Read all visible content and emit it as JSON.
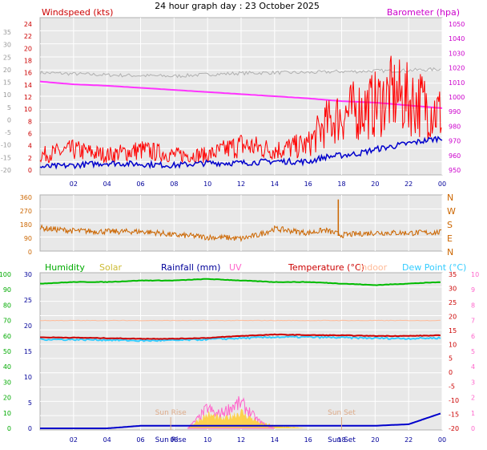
{
  "title": "24 hour graph day : 23 October 2025",
  "x_ticks": [
    "02",
    "04",
    "06",
    "08",
    "10",
    "12",
    "14",
    "16",
    "18",
    "20",
    "22",
    "00"
  ],
  "colors": {
    "background": "#ffffff",
    "plot_bg": "#e8e8e8",
    "grid": "#ffffff",
    "wind_gust": "#ff0000",
    "wind_avg": "#0000cc",
    "barometer": "#ff33ff",
    "gray_series": "#b0b0b0",
    "wind_dir": "#cc6600",
    "humidity": "#00bb00",
    "solar": "#ffcc33",
    "rainfall": "#0000cc",
    "uv": "#ff66cc",
    "temperature": "#cc0000",
    "indoor": "#ffbb99",
    "dew_point": "#33ccff",
    "text_blue": "#000099"
  },
  "chart_data": [
    {
      "type": "line",
      "title": "24 hour graph day : 23 October 2025",
      "left_label": "Windspeed (kts)",
      "right_label": "Barometer (hpa)",
      "left_ticks": [
        "24",
        "22",
        "20",
        "18",
        "16",
        "14",
        "12",
        "10",
        "8",
        "6",
        "4",
        "2",
        "0"
      ],
      "right_ticks": [
        "1050",
        "1040",
        "1030",
        "1020",
        "1010",
        "1000",
        "990",
        "980",
        "970",
        "960",
        "950"
      ],
      "far_left_ticks": [
        "35",
        "30",
        "25",
        "20",
        "15",
        "10",
        "5",
        "0",
        "-5",
        "-10",
        "-15",
        "-20"
      ],
      "ylim": [
        0,
        25
      ],
      "y2lim": [
        945,
        1050
      ],
      "x": [
        0,
        2,
        4,
        6,
        8,
        10,
        12,
        14,
        16,
        17,
        18,
        19,
        20,
        21,
        22,
        23,
        24
      ],
      "series": [
        {
          "key": "gust",
          "values": [
            3,
            4,
            3,
            4,
            3,
            3,
            5,
            4,
            5,
            9,
            11,
            12,
            13,
            15,
            14,
            13,
            11
          ]
        },
        {
          "key": "avg",
          "values": [
            0.5,
            0.8,
            1.2,
            1.0,
            0.8,
            1.2,
            1.2,
            1.5,
            1.4,
            2.2,
            2.5,
            2.8,
            3.5,
            4.0,
            4.5,
            5.0,
            5.5
          ]
        },
        {
          "key": "baro",
          "values": [
            1008,
            1006,
            1005,
            1003.5,
            1002,
            1000.5,
            999,
            997.5,
            996,
            995,
            994,
            993.5,
            993,
            992,
            991,
            990,
            989
          ]
        },
        {
          "key": "gray",
          "values": [
            16.5,
            16.3,
            16.1,
            16.0,
            15.9,
            16.2,
            16.4,
            16.5,
            16.5,
            16.6,
            16.7,
            16.7,
            16.8,
            16.8,
            16.9,
            17.0,
            17.1
          ]
        }
      ]
    },
    {
      "type": "scatter",
      "ticks": [
        "360",
        "270",
        "180",
        "90",
        "0"
      ],
      "compass": [
        "N",
        "W",
        "S",
        "E",
        "N"
      ],
      "ylim": [
        0,
        360
      ],
      "x": [
        0,
        2,
        4,
        6,
        7,
        8,
        9,
        10,
        11,
        12,
        13,
        14,
        16,
        17,
        18,
        20,
        22,
        24
      ],
      "values": [
        145,
        125,
        120,
        120,
        112,
        95,
        90,
        80,
        78,
        70,
        95,
        140,
        110,
        130,
        95,
        112,
        110,
        115
      ]
    },
    {
      "type": "line",
      "labels": {
        "humidity": "Humidity",
        "solar": "Solar",
        "rainfall": "Rainfall (mm)",
        "uv": "UV",
        "temperature": "Temperature (°C)",
        "indoor": "Indoor",
        "dew_point": "Dew Point (°C)"
      },
      "annotations": [
        "Sun Rise",
        "Sun Set",
        "Sun Rise",
        "Sun Set"
      ],
      "humidity_ticks": [
        "100",
        "90",
        "80",
        "70",
        "60",
        "50",
        "40",
        "30",
        "20",
        "10",
        "0"
      ],
      "solar_ticks": [
        "30",
        "25",
        "20",
        "15",
        "10",
        "5",
        "0"
      ],
      "temp_ticks": [
        "35",
        "30",
        "25",
        "20",
        "15",
        "10",
        "5",
        "0",
        "-5",
        "-10",
        "-15",
        "-20"
      ],
      "uv_ticks": [
        "10",
        "9",
        "8",
        "7",
        "6",
        "5",
        "4",
        "3",
        "2",
        "1",
        "0"
      ],
      "x": [
        0,
        2,
        4,
        6,
        8,
        10,
        12,
        14,
        16,
        18,
        20,
        22,
        24
      ],
      "series": [
        {
          "key": "humidity",
          "values": [
            94,
            95,
            95,
            96,
            96,
            97,
            96,
            95,
            95,
            94,
            93,
            94,
            95
          ]
        },
        {
          "key": "temperature",
          "values": [
            12.5,
            12.4,
            12.2,
            12.0,
            12.0,
            12.3,
            13.0,
            13.5,
            13.3,
            13.2,
            13.0,
            13.0,
            13.2
          ]
        },
        {
          "key": "dew_point",
          "values": [
            11.8,
            11.7,
            11.6,
            11.3,
            11.4,
            11.8,
            12.2,
            12.6,
            12.6,
            12.4,
            12.2,
            12.1,
            12.3
          ]
        },
        {
          "key": "indoor",
          "values": [
            18.5,
            18.5,
            18.5,
            18.5,
            18.5,
            18.5,
            18.5,
            18.5,
            18.5,
            18.5,
            18.5,
            18.5,
            18.5
          ]
        },
        {
          "key": "rainfall",
          "values": [
            0,
            0,
            0,
            0.5,
            0.5,
            0.5,
            0.5,
            0.5,
            0.5,
            0.5,
            0.5,
            0.8,
            3
          ]
        }
      ],
      "solar_area": {
        "x": [
          8.8,
          9.5,
          10,
          10.5,
          11,
          11.5,
          12,
          12.5,
          13,
          13.5,
          14,
          15,
          16
        ],
        "values": [
          0,
          2,
          3,
          2.5,
          2,
          3,
          3.5,
          2.5,
          1.5,
          1,
          0.5,
          0.3,
          0
        ]
      },
      "uv_area": {
        "x": [
          8.8,
          9.5,
          10,
          10.5,
          11,
          11.5,
          12,
          12.5,
          13,
          13.5,
          14
        ],
        "values": [
          0,
          0.8,
          1.5,
          1.0,
          1.2,
          1.6,
          1.8,
          1.2,
          0.6,
          0.2,
          0
        ]
      },
      "sun_rise_x": 7.8,
      "sun_set_x": 18.0
    }
  ]
}
